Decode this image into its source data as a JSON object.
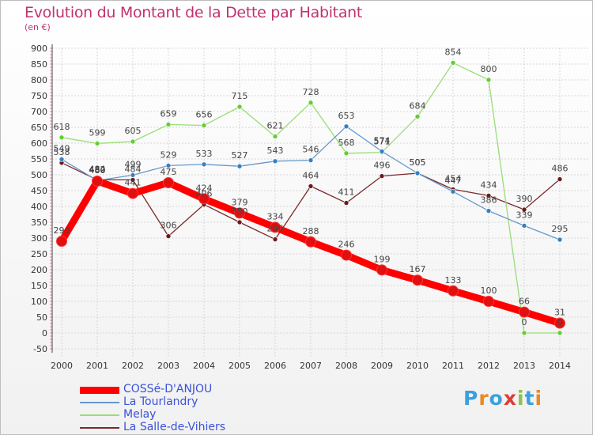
{
  "title": "Evolution du Montant de la Dette par Habitant",
  "unit": "(en €)",
  "logo": {
    "text": "Proxiti",
    "colors": [
      "#3aa0e0",
      "#e98a25",
      "#3aa0e0",
      "#e03a3a",
      "#8bc34a",
      "#3aa0e0",
      "#e98a25"
    ]
  },
  "chart_data": {
    "type": "line",
    "title": "Evolution du Montant de la Dette par Habitant",
    "ylabel": "(en €)",
    "xlabel": "",
    "x": [
      "2000",
      "2001",
      "2002",
      "2003",
      "2004",
      "2005",
      "2006",
      "2007",
      "2008",
      "2009",
      "2010",
      "2011",
      "2012",
      "2013",
      "2014"
    ],
    "yticks": [
      -50,
      0,
      50,
      100,
      150,
      200,
      250,
      300,
      350,
      400,
      450,
      500,
      550,
      600,
      650,
      700,
      750,
      800,
      850,
      900
    ],
    "ylim": [
      -50,
      900
    ],
    "grid": true,
    "legend_position": "bottom-left",
    "series": [
      {
        "name": "COSSé-D'ANJOU",
        "color": "#ff0000",
        "marker": "#e01010",
        "values": [
          290,
          480,
          441,
          475,
          424,
          379,
          334,
          288,
          246,
          199,
          167,
          133,
          100,
          66,
          31
        ]
      },
      {
        "name": "La Tourlandry",
        "color": "#6699cc",
        "marker": "#3a7fc0",
        "values": [
          549,
          482,
          499,
          529,
          533,
          527,
          543,
          546,
          653,
          574,
          505,
          447,
          386,
          339,
          295
        ]
      },
      {
        "name": "Melay",
        "color": "#99dd77",
        "marker": "#66cc33",
        "values": [
          618,
          599,
          605,
          659,
          656,
          715,
          621,
          728,
          568,
          571,
          684,
          854,
          800,
          0,
          0
        ]
      },
      {
        "name": "La Salle-de-Vihiers",
        "color": "#7a2a2a",
        "marker": "#6a1a1a",
        "values": [
          538,
          484,
          484,
          306,
          406,
          350,
          296,
          464,
          411,
          496,
          505,
          454,
          434,
          390,
          486
        ]
      }
    ]
  }
}
